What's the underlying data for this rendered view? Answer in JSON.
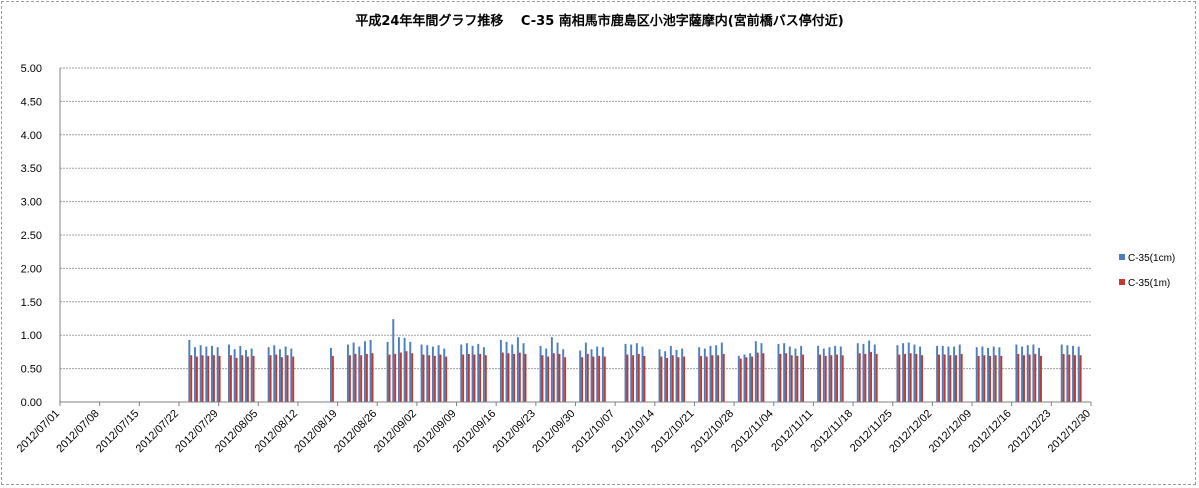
{
  "chart_data": {
    "type": "bar",
    "title": "平成24年年間グラフ推移　 C-35 南相馬市鹿島区小池字薩摩内(宮前橋バス停付近)",
    "xlabel": "",
    "ylabel": "",
    "ylim": [
      0,
      5
    ],
    "yticks": [
      "0.00",
      "0.50",
      "1.00",
      "1.50",
      "2.00",
      "2.50",
      "3.00",
      "3.50",
      "4.00",
      "4.50",
      "5.00"
    ],
    "x_tick_labels": [
      "2012/07/01",
      "2012/07/08",
      "2012/07/15",
      "2012/07/22",
      "2012/07/29",
      "2012/08/05",
      "2012/08/12",
      "2012/08/19",
      "2012/08/26",
      "2012/09/02",
      "2012/09/09",
      "2012/09/16",
      "2012/09/23",
      "2012/09/30",
      "2012/10/07",
      "2012/10/14",
      "2012/10/21",
      "2012/10/28",
      "2012/11/04",
      "2012/11/11",
      "2012/11/18",
      "2012/11/25",
      "2012/12/02",
      "2012/12/09",
      "2012/12/16",
      "2012/12/23",
      "2012/12/30"
    ],
    "grid": true,
    "legend_position": "right",
    "colors": {
      "series1": "#4a7ebf",
      "series2": "#c0392b",
      "grid": "#a0a0a0",
      "axis": "#808080"
    },
    "series": [
      {
        "name": "C-35(1cm)",
        "points": [
          [
            "07/24",
            0.93
          ],
          [
            "07/25",
            0.82
          ],
          [
            "07/26",
            0.85
          ],
          [
            "07/27",
            0.83
          ],
          [
            "07/28",
            0.84
          ],
          [
            "07/29",
            0.82
          ],
          [
            "07/31",
            0.86
          ],
          [
            "08/01",
            0.79
          ],
          [
            "08/02",
            0.84
          ],
          [
            "08/03",
            0.78
          ],
          [
            "08/04",
            0.8
          ],
          [
            "08/07",
            0.82
          ],
          [
            "08/08",
            0.85
          ],
          [
            "08/09",
            0.79
          ],
          [
            "08/10",
            0.83
          ],
          [
            "08/11",
            0.8
          ],
          [
            "08/18",
            0.81
          ],
          [
            "08/21",
            0.86
          ],
          [
            "08/22",
            0.89
          ],
          [
            "08/23",
            0.83
          ],
          [
            "08/24",
            0.91
          ],
          [
            "08/25",
            0.93
          ],
          [
            "08/28",
            0.9
          ],
          [
            "08/29",
            1.24
          ],
          [
            "08/30",
            0.97
          ],
          [
            "08/31",
            0.96
          ],
          [
            "09/01",
            0.9
          ],
          [
            "09/03",
            0.86
          ],
          [
            "09/04",
            0.85
          ],
          [
            "09/05",
            0.83
          ],
          [
            "09/06",
            0.85
          ],
          [
            "09/07",
            0.8
          ],
          [
            "09/10",
            0.86
          ],
          [
            "09/11",
            0.88
          ],
          [
            "09/12",
            0.84
          ],
          [
            "09/13",
            0.87
          ],
          [
            "09/14",
            0.82
          ],
          [
            "09/17",
            0.93
          ],
          [
            "09/18",
            0.9
          ],
          [
            "09/19",
            0.86
          ],
          [
            "09/20",
            0.97
          ],
          [
            "09/21",
            0.88
          ],
          [
            "09/24",
            0.84
          ],
          [
            "09/25",
            0.8
          ],
          [
            "09/26",
            0.97
          ],
          [
            "09/27",
            0.89
          ],
          [
            "09/28",
            0.79
          ],
          [
            "10/01",
            0.77
          ],
          [
            "10/02",
            0.89
          ],
          [
            "10/03",
            0.79
          ],
          [
            "10/04",
            0.83
          ],
          [
            "10/05",
            0.82
          ],
          [
            "10/09",
            0.87
          ],
          [
            "10/10",
            0.86
          ],
          [
            "10/11",
            0.88
          ],
          [
            "10/12",
            0.83
          ],
          [
            "10/15",
            0.79
          ],
          [
            "10/16",
            0.76
          ],
          [
            "10/17",
            0.84
          ],
          [
            "10/18",
            0.78
          ],
          [
            "10/19",
            0.8
          ],
          [
            "10/22",
            0.82
          ],
          [
            "10/23",
            0.8
          ],
          [
            "10/24",
            0.84
          ],
          [
            "10/25",
            0.85
          ],
          [
            "10/26",
            0.89
          ],
          [
            "10/29",
            0.69
          ],
          [
            "10/30",
            0.71
          ],
          [
            "10/31",
            0.73
          ],
          [
            "11/01",
            0.91
          ],
          [
            "11/02",
            0.88
          ],
          [
            "11/05",
            0.87
          ],
          [
            "11/06",
            0.88
          ],
          [
            "11/07",
            0.83
          ],
          [
            "11/08",
            0.8
          ],
          [
            "11/09",
            0.84
          ],
          [
            "11/12",
            0.84
          ],
          [
            "11/13",
            0.8
          ],
          [
            "11/14",
            0.82
          ],
          [
            "11/15",
            0.84
          ],
          [
            "11/16",
            0.83
          ],
          [
            "11/19",
            0.88
          ],
          [
            "11/20",
            0.87
          ],
          [
            "11/21",
            0.92
          ],
          [
            "11/22",
            0.86
          ],
          [
            "11/26",
            0.85
          ],
          [
            "11/27",
            0.88
          ],
          [
            "11/28",
            0.89
          ],
          [
            "11/29",
            0.86
          ],
          [
            "11/30",
            0.83
          ],
          [
            "12/03",
            0.84
          ],
          [
            "12/04",
            0.84
          ],
          [
            "12/05",
            0.83
          ],
          [
            "12/06",
            0.83
          ],
          [
            "12/07",
            0.86
          ],
          [
            "12/10",
            0.82
          ],
          [
            "12/11",
            0.83
          ],
          [
            "12/12",
            0.81
          ],
          [
            "12/13",
            0.83
          ],
          [
            "12/14",
            0.82
          ],
          [
            "12/17",
            0.86
          ],
          [
            "12/18",
            0.83
          ],
          [
            "12/19",
            0.85
          ],
          [
            "12/20",
            0.86
          ],
          [
            "12/21",
            0.81
          ],
          [
            "12/25",
            0.86
          ],
          [
            "12/26",
            0.85
          ],
          [
            "12/27",
            0.84
          ],
          [
            "12/28",
            0.83
          ]
        ]
      },
      {
        "name": "C-35(1m)",
        "points": [
          [
            "07/24",
            0.7
          ],
          [
            "07/25",
            0.68
          ],
          [
            "07/26",
            0.7
          ],
          [
            "07/27",
            0.69
          ],
          [
            "07/28",
            0.7
          ],
          [
            "07/29",
            0.69
          ],
          [
            "07/31",
            0.7
          ],
          [
            "08/01",
            0.66
          ],
          [
            "08/02",
            0.7
          ],
          [
            "08/03",
            0.68
          ],
          [
            "08/04",
            0.69
          ],
          [
            "08/07",
            0.7
          ],
          [
            "08/08",
            0.71
          ],
          [
            "08/09",
            0.67
          ],
          [
            "08/10",
            0.7
          ],
          [
            "08/11",
            0.68
          ],
          [
            "08/18",
            0.69
          ],
          [
            "08/21",
            0.7
          ],
          [
            "08/22",
            0.72
          ],
          [
            "08/23",
            0.7
          ],
          [
            "08/24",
            0.72
          ],
          [
            "08/25",
            0.73
          ],
          [
            "08/28",
            0.71
          ],
          [
            "08/29",
            0.72
          ],
          [
            "08/30",
            0.74
          ],
          [
            "08/31",
            0.76
          ],
          [
            "09/01",
            0.73
          ],
          [
            "09/03",
            0.71
          ],
          [
            "09/04",
            0.7
          ],
          [
            "09/05",
            0.69
          ],
          [
            "09/06",
            0.71
          ],
          [
            "09/07",
            0.68
          ],
          [
            "09/10",
            0.71
          ],
          [
            "09/11",
            0.72
          ],
          [
            "09/12",
            0.71
          ],
          [
            "09/13",
            0.72
          ],
          [
            "09/14",
            0.7
          ],
          [
            "09/17",
            0.74
          ],
          [
            "09/18",
            0.73
          ],
          [
            "09/19",
            0.72
          ],
          [
            "09/20",
            0.74
          ],
          [
            "09/21",
            0.72
          ],
          [
            "09/24",
            0.7
          ],
          [
            "09/25",
            0.68
          ],
          [
            "09/26",
            0.73
          ],
          [
            "09/27",
            0.72
          ],
          [
            "09/28",
            0.67
          ],
          [
            "10/01",
            0.67
          ],
          [
            "10/02",
            0.72
          ],
          [
            "10/03",
            0.68
          ],
          [
            "10/04",
            0.69
          ],
          [
            "10/05",
            0.68
          ],
          [
            "10/09",
            0.71
          ],
          [
            "10/10",
            0.7
          ],
          [
            "10/11",
            0.72
          ],
          [
            "10/12",
            0.69
          ],
          [
            "10/15",
            0.68
          ],
          [
            "10/16",
            0.66
          ],
          [
            "10/17",
            0.7
          ],
          [
            "10/18",
            0.67
          ],
          [
            "10/19",
            0.68
          ],
          [
            "10/22",
            0.69
          ],
          [
            "10/23",
            0.68
          ],
          [
            "10/24",
            0.7
          ],
          [
            "10/25",
            0.7
          ],
          [
            "10/26",
            0.72
          ],
          [
            "10/29",
            0.65
          ],
          [
            "10/30",
            0.67
          ],
          [
            "10/31",
            0.68
          ],
          [
            "11/01",
            0.74
          ],
          [
            "11/02",
            0.73
          ],
          [
            "11/05",
            0.72
          ],
          [
            "11/06",
            0.73
          ],
          [
            "11/07",
            0.7
          ],
          [
            "11/08",
            0.69
          ],
          [
            "11/09",
            0.71
          ],
          [
            "11/12",
            0.71
          ],
          [
            "11/13",
            0.69
          ],
          [
            "11/14",
            0.7
          ],
          [
            "11/15",
            0.71
          ],
          [
            "11/16",
            0.7
          ],
          [
            "11/19",
            0.73
          ],
          [
            "11/20",
            0.72
          ],
          [
            "11/21",
            0.75
          ],
          [
            "11/22",
            0.72
          ],
          [
            "11/26",
            0.71
          ],
          [
            "11/27",
            0.72
          ],
          [
            "11/28",
            0.73
          ],
          [
            "11/29",
            0.72
          ],
          [
            "11/30",
            0.7
          ],
          [
            "12/03",
            0.71
          ],
          [
            "12/04",
            0.71
          ],
          [
            "12/05",
            0.7
          ],
          [
            "12/06",
            0.7
          ],
          [
            "12/07",
            0.72
          ],
          [
            "12/10",
            0.69
          ],
          [
            "12/11",
            0.7
          ],
          [
            "12/12",
            0.69
          ],
          [
            "12/13",
            0.7
          ],
          [
            "12/14",
            0.69
          ],
          [
            "12/17",
            0.72
          ],
          [
            "12/18",
            0.7
          ],
          [
            "12/19",
            0.71
          ],
          [
            "12/20",
            0.72
          ],
          [
            "12/21",
            0.69
          ],
          [
            "12/25",
            0.72
          ],
          [
            "12/26",
            0.71
          ],
          [
            "12/27",
            0.7
          ],
          [
            "12/28",
            0.7
          ]
        ]
      }
    ]
  }
}
